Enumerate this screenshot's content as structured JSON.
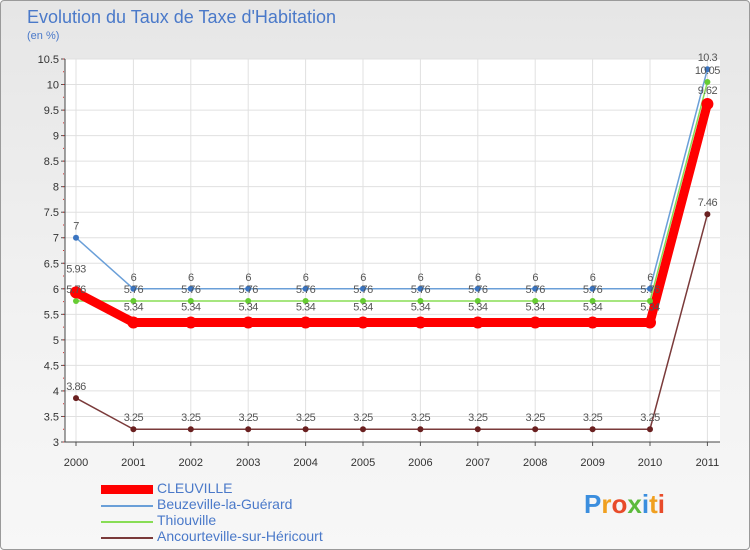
{
  "title": "Evolution du Taux de Taxe d'Habitation",
  "subtitle": "(en %)",
  "logo_text": "Proxiti",
  "chart_data": {
    "type": "line",
    "title": "Evolution du Taux de Taxe d'Habitation",
    "ylabel": "(en %)",
    "xlabel": "",
    "ylim": [
      3,
      10.5
    ],
    "y_ticks": [
      "3",
      "3.5",
      "4",
      "4.5",
      "5",
      "5.5",
      "6",
      "6.5",
      "7",
      "7.5",
      "8",
      "8.5",
      "9",
      "9.5",
      "10",
      "10.5"
    ],
    "categories": [
      "2000",
      "2001",
      "2002",
      "2003",
      "2004",
      "2005",
      "2006",
      "2007",
      "2008",
      "2009",
      "2010",
      "2011"
    ],
    "series": [
      {
        "name": "CLEUVILLE",
        "color": "#ff0000",
        "values": [
          5.93,
          5.34,
          5.34,
          5.34,
          5.34,
          5.34,
          5.34,
          5.34,
          5.34,
          5.34,
          5.34,
          9.62
        ],
        "labels": [
          "5.93",
          "5.34",
          "5.34",
          "5.34",
          "5.34",
          "5.34",
          "5.34",
          "5.34",
          "5.34",
          "5.34",
          "5.34",
          "9.62"
        ]
      },
      {
        "name": "Beuzeville-la-Guérard",
        "color": "#6a9fd8",
        "marker_color": "#3a74c0",
        "values": [
          7,
          6,
          6,
          6,
          6,
          6,
          6,
          6,
          6,
          6,
          6,
          10.3
        ],
        "labels": [
          "7",
          "6",
          "6",
          "6",
          "6",
          "6",
          "6",
          "6",
          "6",
          "6",
          "6",
          "10.3"
        ]
      },
      {
        "name": "Thiouville",
        "color": "#88dd55",
        "marker_color": "#66cc33",
        "values": [
          5.76,
          5.76,
          5.76,
          5.76,
          5.76,
          5.76,
          5.76,
          5.76,
          5.76,
          5.76,
          5.76,
          10.05
        ],
        "labels": [
          "5.76",
          "5.76",
          "5.76",
          "5.76",
          "5.76",
          "5.76",
          "5.76",
          "5.76",
          "5.76",
          "5.76",
          "5.76",
          "10.05"
        ]
      },
      {
        "name": "Ancourteville-sur-Héricourt",
        "color": "#7a3a3a",
        "marker_color": "#6a2020",
        "values": [
          3.86,
          3.25,
          3.25,
          3.25,
          3.25,
          3.25,
          3.25,
          3.25,
          3.25,
          3.25,
          3.25,
          7.46
        ],
        "labels": [
          "3.86",
          "3.25",
          "3.25",
          "3.25",
          "3.25",
          "3.25",
          "3.25",
          "3.25",
          "3.25",
          "3.25",
          "3.25",
          "7.46"
        ]
      }
    ],
    "legend_position": "bottom-left"
  }
}
